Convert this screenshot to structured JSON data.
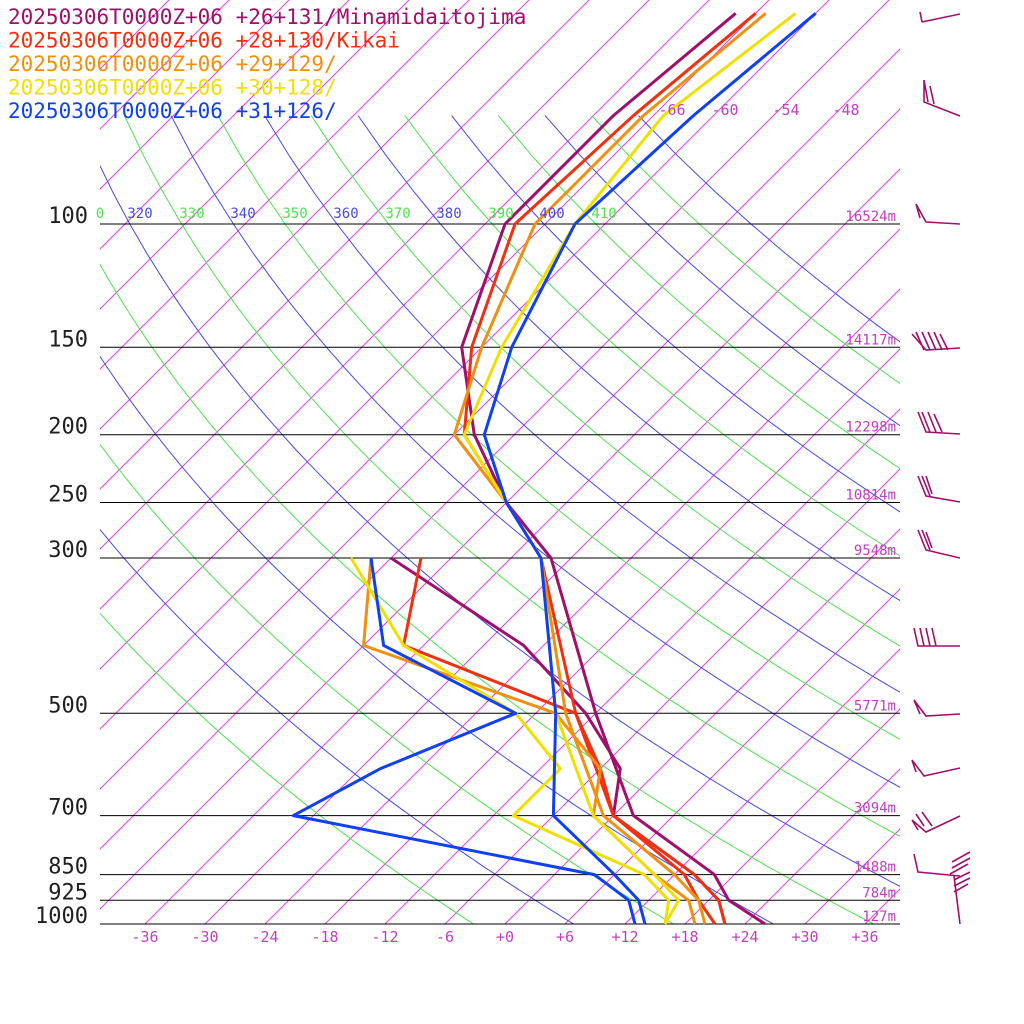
{
  "chart_data": {
    "type": "line",
    "diagram": "skew-T log-P sounding",
    "legend_entries": [
      {
        "text": "20250306T0000Z+06 +26+131/Minamidaitojima",
        "color": "#a0106a"
      },
      {
        "text": "20250306T0000Z+06 +28+130/Kikai",
        "color": "#f03010"
      },
      {
        "text": "20250306T0000Z+06 +29+129/",
        "color": "#f09010"
      },
      {
        "text": "20250306T0000Z+06 +30+128/",
        "color": "#f0e000"
      },
      {
        "text": "20250306T0000Z+06 +31+126/",
        "color": "#1040f0"
      }
    ],
    "pressure_levels": [
      {
        "p": 100,
        "label": "100",
        "height": "16524m"
      },
      {
        "p": 150,
        "label": "150",
        "height": "14117m"
      },
      {
        "p": 200,
        "label": "200",
        "height": "12298m"
      },
      {
        "p": 250,
        "label": "250",
        "height": "10814m"
      },
      {
        "p": 300,
        "label": "300",
        "height": "9548m"
      },
      {
        "p": 500,
        "label": "500",
        "height": "5771m"
      },
      {
        "p": 700,
        "label": "700",
        "height": "3094m"
      },
      {
        "p": 850,
        "label": "850",
        "height": "1488m"
      },
      {
        "p": 925,
        "label": "925",
        "height": "784m"
      },
      {
        "p": 1000,
        "label": "1000",
        "height": "127m"
      }
    ],
    "temperature_ticks": [
      "-36",
      "-30",
      "-24",
      "-18",
      "-12",
      "-6",
      "+0",
      "+6",
      "+12",
      "+18",
      "+24",
      "+30",
      "+36"
    ],
    "temperature_tick_values": [
      -36,
      -30,
      -24,
      -18,
      -12,
      -6,
      0,
      6,
      12,
      18,
      24,
      30,
      36
    ],
    "upper_isotherm_labels": [
      "-66",
      "-60",
      "-54",
      "-48"
    ],
    "theta_labels": [
      {
        "text": "0",
        "color": "#50e050"
      },
      {
        "text": "320",
        "color": "#4a4ae0"
      },
      {
        "text": "330",
        "color": "#50e050"
      },
      {
        "text": "340",
        "color": "#4a4ae0"
      },
      {
        "text": "350",
        "color": "#50e050"
      },
      {
        "text": "360",
        "color": "#4a4ae0"
      },
      {
        "text": "370",
        "color": "#50e050"
      },
      {
        "text": "380",
        "color": "#4a4ae0"
      },
      {
        "text": "390",
        "color": "#50e050"
      },
      {
        "text": "400",
        "color": "#4a4ae0"
      },
      {
        "text": "410",
        "color": "#50e050"
      }
    ],
    "axes": {
      "t_range": [
        -40,
        39
      ],
      "p_range": [
        1000,
        100
      ],
      "log_p": true,
      "skewed_isotherms": true
    },
    "colors": {
      "isotherm": "#e040e0",
      "dry_adiabat_a": "#4a4ae0",
      "dry_adiabat_b": "#50e050",
      "isobar": "#000000",
      "label": "#c040c0",
      "barb": "#a0106a"
    },
    "series": [
      {
        "name": "20250306T0000Z+06 +26+131/Minamidaitojima",
        "color": "#a0106a",
        "temperature": [
          [
            1000,
            26
          ],
          [
            925,
            20
          ],
          [
            850,
            16
          ],
          [
            700,
            2
          ],
          [
            500,
            -12
          ],
          [
            300,
            -32
          ],
          [
            250,
            -42
          ],
          [
            200,
            -52
          ],
          [
            150,
            -62
          ],
          [
            100,
            -70
          ],
          [
            70,
            -70
          ],
          [
            50,
            -68
          ]
        ],
        "dewpoint": [
          [
            1000,
            22
          ],
          [
            925,
            19
          ],
          [
            850,
            14
          ],
          [
            700,
            0
          ],
          [
            600,
            -4
          ],
          [
            500,
            -13
          ],
          [
            400,
            -26
          ],
          [
            300,
            -48
          ]
        ]
      },
      {
        "name": "20250306T0000Z+06 +28+130/Kikai",
        "color": "#f03010",
        "temperature": [
          [
            1000,
            22
          ],
          [
            925,
            19
          ],
          [
            850,
            14
          ],
          [
            700,
            0
          ],
          [
            500,
            -14
          ],
          [
            300,
            -33
          ],
          [
            250,
            -42
          ],
          [
            200,
            -53
          ],
          [
            150,
            -61
          ],
          [
            100,
            -69
          ],
          [
            70,
            -68
          ],
          [
            50,
            -66
          ]
        ],
        "dewpoint": [
          [
            1000,
            21
          ],
          [
            925,
            17
          ],
          [
            850,
            13
          ],
          [
            700,
            0
          ],
          [
            600,
            -6
          ],
          [
            500,
            -14
          ],
          [
            400,
            -38
          ],
          [
            300,
            -45
          ]
        ]
      },
      {
        "name": "20250306T0000Z+06 +29+129/",
        "color": "#f09010",
        "temperature": [
          [
            1000,
            20
          ],
          [
            925,
            17
          ],
          [
            850,
            12
          ],
          [
            700,
            -1
          ],
          [
            500,
            -15
          ],
          [
            300,
            -33
          ],
          [
            250,
            -42
          ],
          [
            200,
            -54
          ],
          [
            150,
            -60
          ],
          [
            100,
            -67
          ],
          [
            70,
            -67
          ],
          [
            50,
            -65
          ]
        ],
        "dewpoint": [
          [
            1000,
            19
          ],
          [
            925,
            16
          ],
          [
            850,
            10
          ],
          [
            700,
            -2
          ],
          [
            600,
            -6
          ],
          [
            500,
            -16
          ],
          [
            400,
            -42
          ],
          [
            300,
            -50
          ]
        ]
      },
      {
        "name": "20250306T0000Z+06 +30+128/",
        "color": "#f0e000",
        "temperature": [
          [
            1000,
            16
          ],
          [
            925,
            15
          ],
          [
            850,
            10
          ],
          [
            700,
            -2
          ],
          [
            500,
            -16
          ],
          [
            300,
            -33
          ],
          [
            250,
            -42
          ],
          [
            200,
            -53
          ],
          [
            150,
            -58
          ],
          [
            100,
            -63
          ],
          [
            70,
            -65
          ],
          [
            50,
            -62
          ]
        ],
        "dewpoint": [
          [
            1000,
            16
          ],
          [
            925,
            14
          ],
          [
            850,
            9
          ],
          [
            700,
            -10
          ],
          [
            600,
            -10
          ],
          [
            500,
            -20
          ],
          [
            400,
            -38
          ],
          [
            300,
            -52
          ]
        ]
      },
      {
        "name": "20250306T0000Z+06 +31+126/",
        "color": "#1040f0",
        "temperature": [
          [
            1000,
            14
          ],
          [
            925,
            11
          ],
          [
            850,
            6
          ],
          [
            700,
            -6
          ],
          [
            500,
            -16
          ],
          [
            300,
            -33
          ],
          [
            250,
            -42
          ],
          [
            200,
            -51
          ],
          [
            150,
            -57
          ],
          [
            100,
            -63
          ],
          [
            70,
            -62
          ],
          [
            50,
            -60
          ]
        ],
        "dewpoint": [
          [
            1000,
            13
          ],
          [
            925,
            10
          ],
          [
            850,
            4
          ],
          [
            700,
            -32
          ],
          [
            600,
            -28
          ],
          [
            500,
            -20
          ],
          [
            400,
            -40
          ],
          [
            300,
            -50
          ]
        ]
      }
    ]
  }
}
